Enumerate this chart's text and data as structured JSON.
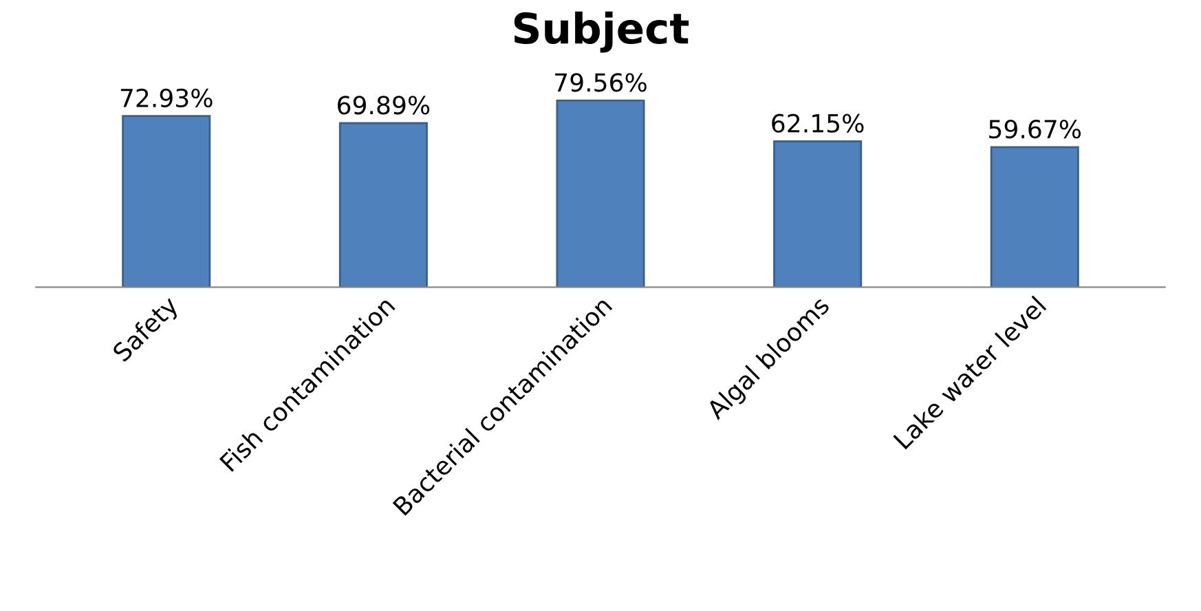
{
  "chart_data": {
    "type": "bar",
    "title": "Subject",
    "categories": [
      "Safety",
      "Fish contamination",
      "Bacterial contamination",
      "Algal blooms",
      "Lake water level"
    ],
    "values": [
      72.93,
      69.89,
      79.56,
      62.15,
      59.67
    ],
    "value_labels": [
      "72.93%",
      "69.89%",
      "79.56%",
      "62.15%",
      "59.67%"
    ],
    "color": "#4f81bd"
  }
}
